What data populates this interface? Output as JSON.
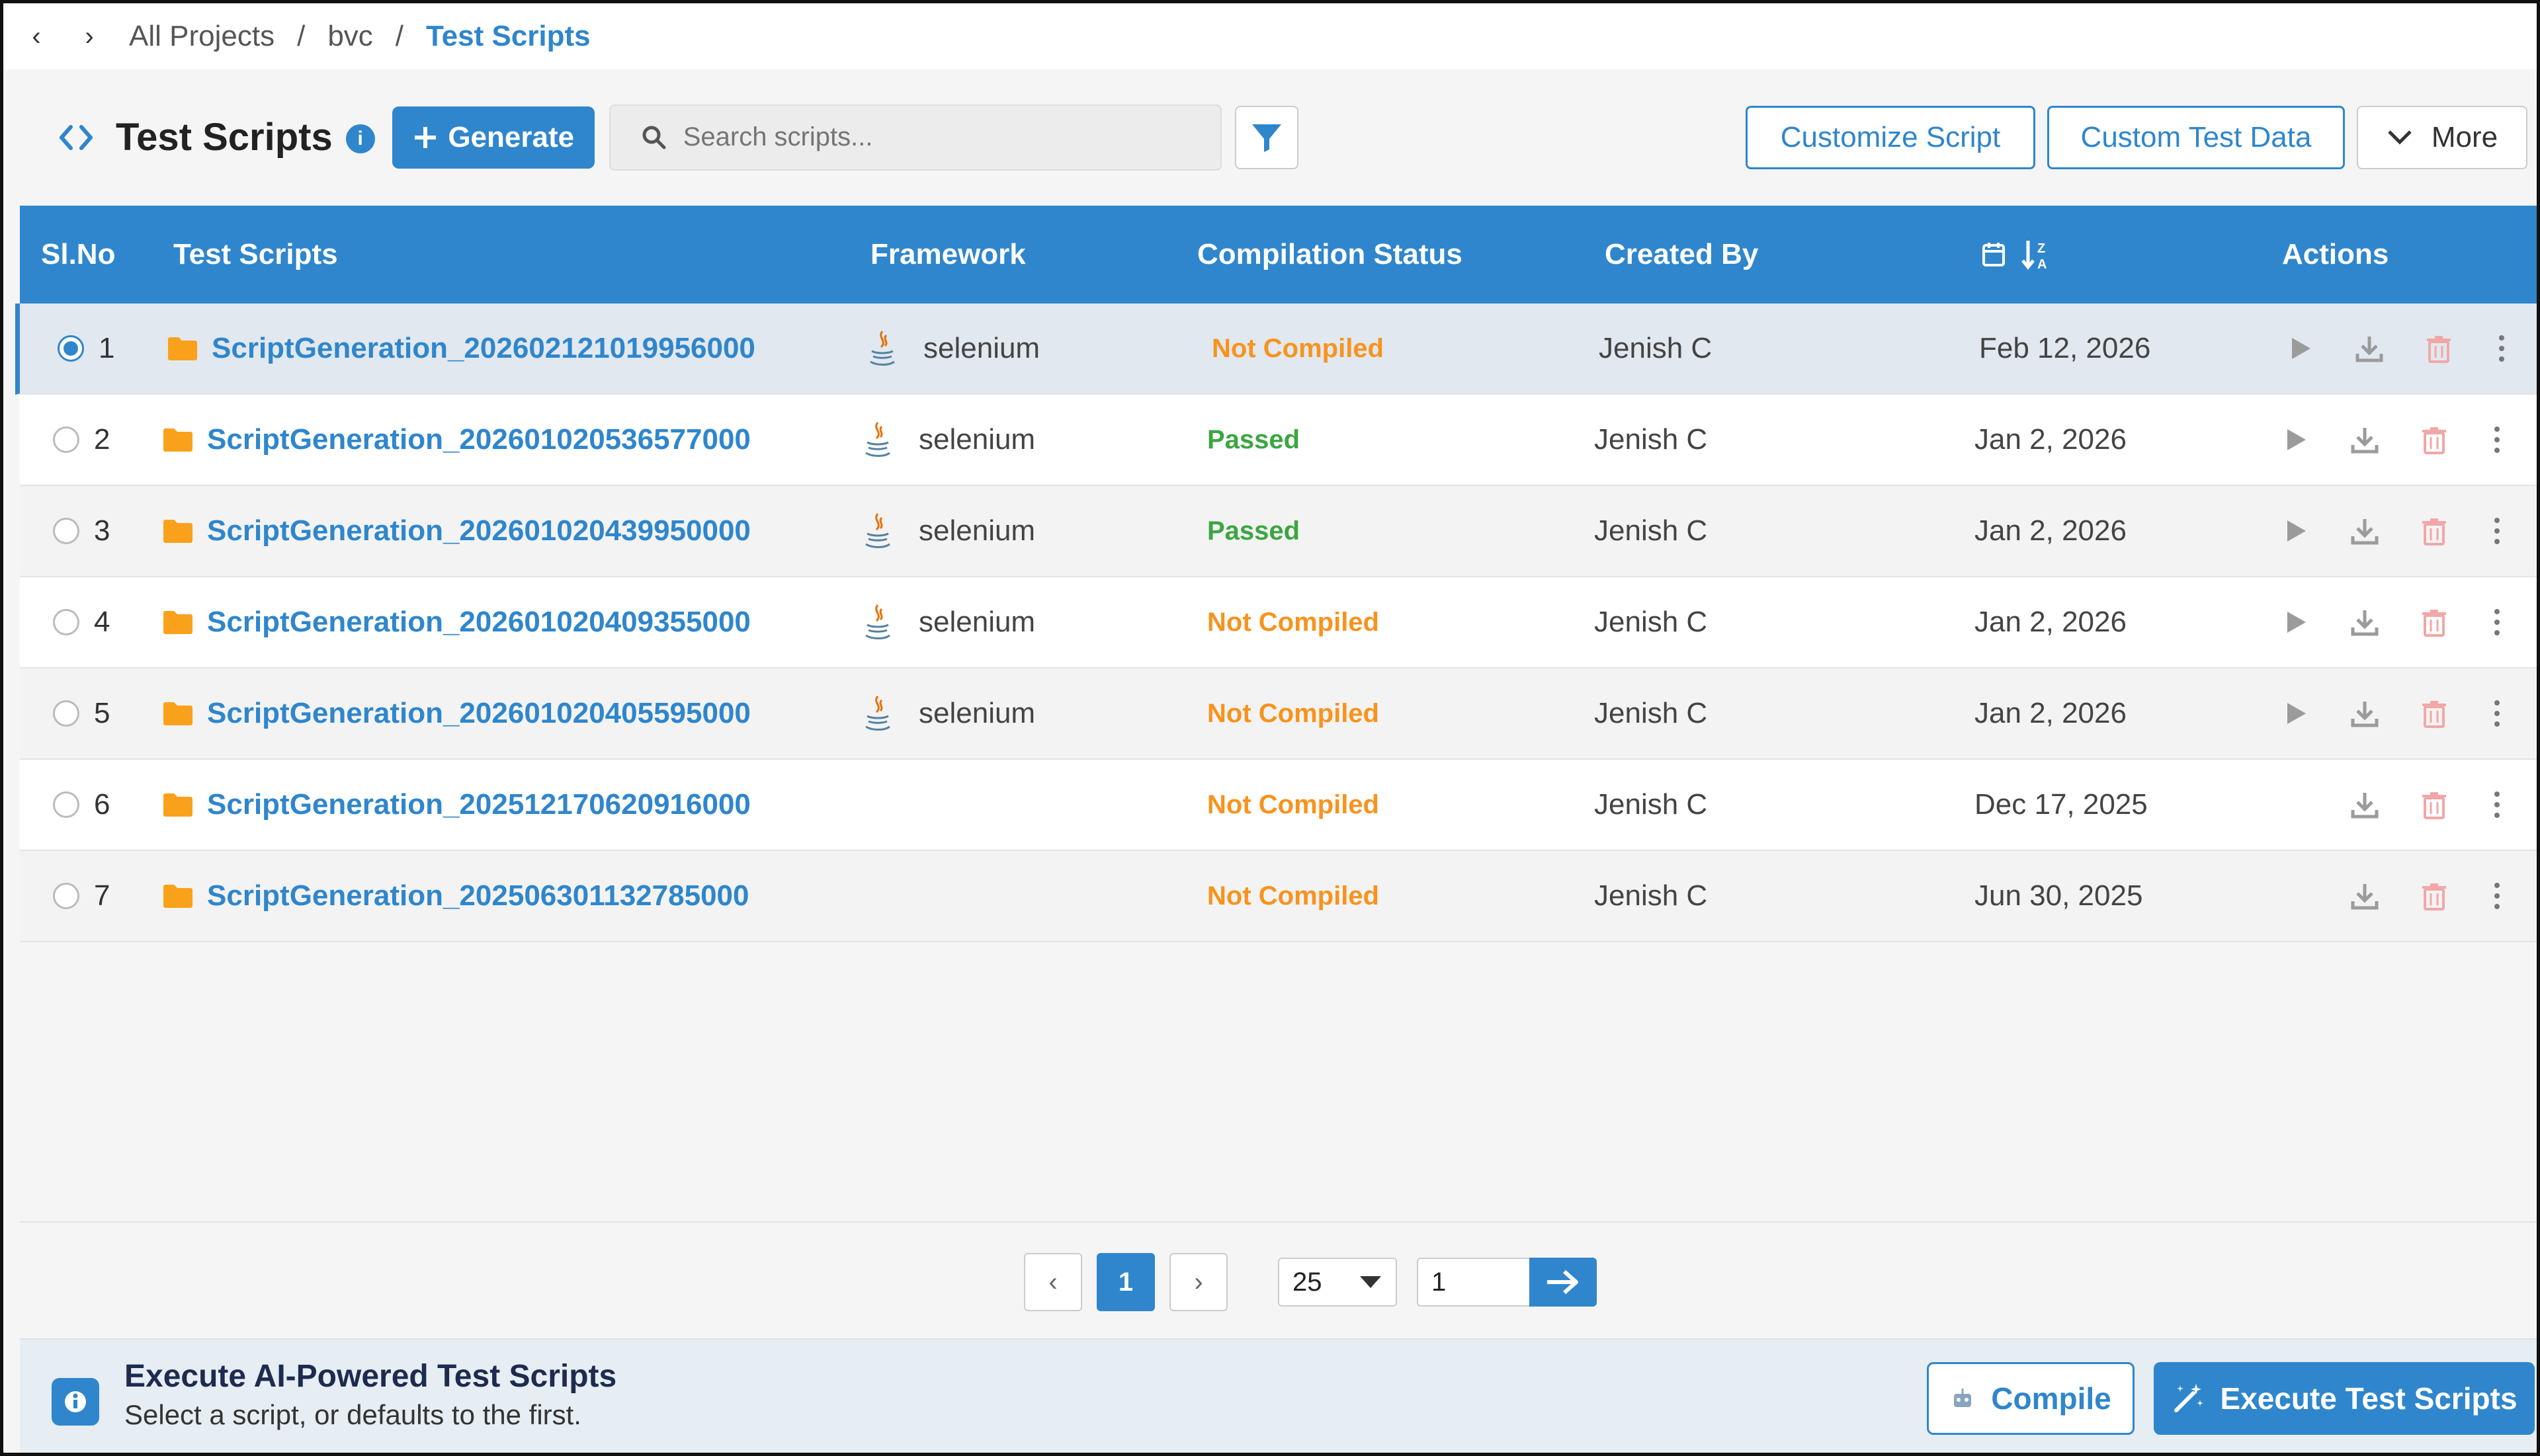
{
  "breadcrumb": {
    "items": [
      "All Projects",
      "bvc",
      "Test Scripts"
    ],
    "separator": "/"
  },
  "toolbar": {
    "title": "Test Scripts",
    "generate_label": "Generate",
    "search_placeholder": "Search scripts...",
    "customize_label": "Customize Script",
    "custom_data_label": "Custom Test Data",
    "more_label": "More"
  },
  "table": {
    "headers": {
      "slno": "Sl.No",
      "scripts": "Test Scripts",
      "framework": "Framework",
      "status": "Compilation Status",
      "created_by": "Created By",
      "actions": "Actions"
    },
    "rows": [
      {
        "no": "1",
        "name": "ScriptGeneration_20260212101995600 0",
        "framework": "selenium",
        "status": "Not Compiled",
        "created_by": "Jenish C",
        "date": "Feb 12, 2026",
        "selected": true
      },
      {
        "no": "2",
        "name": "ScriptGeneration_202601020536577000",
        "framework": "selenium",
        "status": "Passed",
        "created_by": "Jenish C",
        "date": "Jan 2, 2026",
        "selected": false
      },
      {
        "no": "3",
        "name": "ScriptGeneration_202601020439950000",
        "framework": "selenium",
        "status": "Passed",
        "created_by": "Jenish C",
        "date": "Jan 2, 2026",
        "selected": false
      },
      {
        "no": "4",
        "name": "ScriptGeneration_202601020409355000",
        "framework": "selenium",
        "status": "Not Compiled",
        "created_by": "Jenish C",
        "date": "Jan 2, 2026",
        "selected": false
      },
      {
        "no": "5",
        "name": "ScriptGeneration_202601020405595000",
        "framework": "selenium",
        "status": "Not Compiled",
        "created_by": "Jenish C",
        "date": "Jan 2, 2026",
        "selected": false
      },
      {
        "no": "6",
        "name": "ScriptGeneration_202512170620916000",
        "framework": "",
        "status": "Not Compiled",
        "created_by": "Jenish C",
        "date": "Dec 17, 2025",
        "selected": false
      },
      {
        "no": "7",
        "name": "ScriptGeneration_202506301132785000",
        "framework": "",
        "status": "Not Compiled",
        "created_by": "Jenish C",
        "date": "Jun 30, 2025",
        "selected": false
      }
    ]
  },
  "pagination": {
    "current_page": "1",
    "page_size": "25",
    "goto_value": "1"
  },
  "footer": {
    "title": "Execute AI-Powered Test Scripts",
    "subtitle": "Select a script, or defaults to the first.",
    "compile_label": "Compile",
    "execute_label": "Execute Test Scripts"
  },
  "colors": {
    "accent": "#2f86cc",
    "status_not_compiled": "#f7931e",
    "status_passed": "#3ba641",
    "folder": "#f9a11b"
  },
  "icons": [
    "back-icon",
    "forward-icon",
    "code-icon",
    "info-icon",
    "plus-icon",
    "search-icon",
    "filter-icon",
    "chevron-down-icon",
    "calendar-icon",
    "sort-icon",
    "folder-icon",
    "java-icon",
    "play-icon",
    "download-icon",
    "trash-icon",
    "kebab-icon",
    "arrow-right-icon",
    "robot-icon",
    "magic-wand-icon"
  ]
}
